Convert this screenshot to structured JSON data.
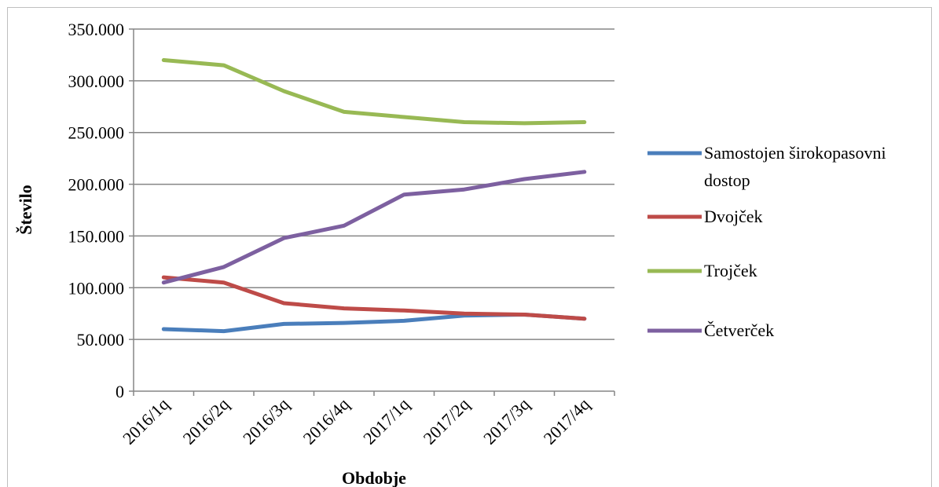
{
  "chart_data": {
    "type": "line",
    "title": "",
    "xlabel": "Obdobje",
    "ylabel": "Število",
    "categories": [
      "2016/1q",
      "2016/2q",
      "2016/3q",
      "2016/4q",
      "2017/1q",
      "2017/2q",
      "2017/3q",
      "2017/4q"
    ],
    "ylim": [
      0,
      350000
    ],
    "yticks": [
      0,
      50000,
      100000,
      150000,
      200000,
      250000,
      300000,
      350000
    ],
    "ytick_labels": [
      "0",
      "50.000",
      "100.000",
      "150.000",
      "200.000",
      "250.000",
      "300.000",
      "350.000"
    ],
    "grid": true,
    "legend_position": "right",
    "series": [
      {
        "name": "Samostojen širokopasovni dostop",
        "color": "#4a7ebb",
        "values": [
          60000,
          58000,
          65000,
          66000,
          68000,
          73000,
          74000,
          70000
        ]
      },
      {
        "name": "Dvojček",
        "color": "#be4b48",
        "values": [
          110000,
          105000,
          85000,
          80000,
          78000,
          75000,
          74000,
          70000
        ]
      },
      {
        "name": "Trojček",
        "color": "#98b954",
        "values": [
          320000,
          315000,
          290000,
          270000,
          265000,
          260000,
          259000,
          260000
        ]
      },
      {
        "name": "Četverček",
        "color": "#7d60a0",
        "values": [
          105000,
          120000,
          148000,
          160000,
          190000,
          195000,
          205000,
          212000
        ]
      }
    ]
  }
}
